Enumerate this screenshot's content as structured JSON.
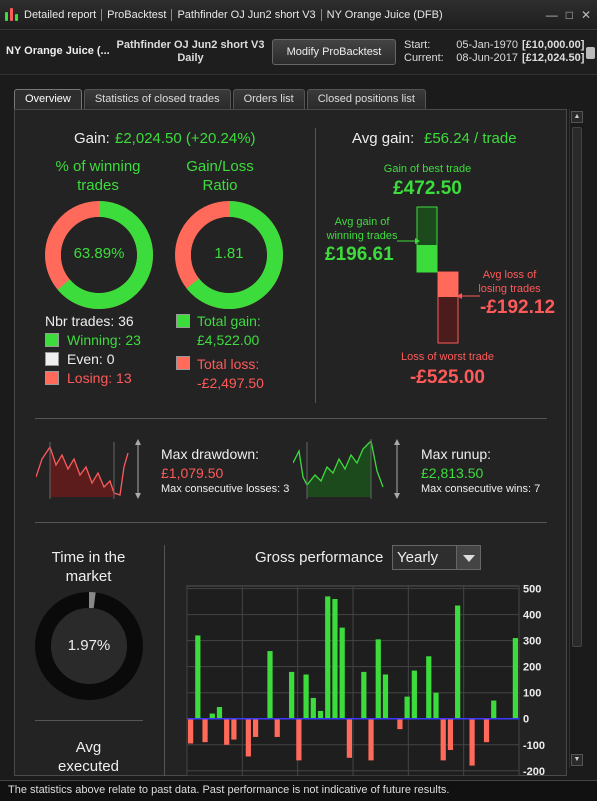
{
  "window": {
    "segments": [
      "Detailed report",
      "ProBacktest",
      "Pathfinder OJ Jun2 short V3",
      "NY Orange Juice (DFB)"
    ],
    "controls": [
      "—",
      "□",
      "✕"
    ]
  },
  "header": {
    "instrument": "NY Orange Juice (...",
    "strategy_name": "Pathfinder OJ Jun2 short V3",
    "timeframe": "Daily",
    "modify_button": "Modify ProBacktest",
    "start_label": "Start:",
    "start_date": "05-Jan-1970",
    "start_amount": "[£10,000.00]",
    "current_label": "Current:",
    "current_date": "08-Jun-2017",
    "current_amount": "[£12,024.50]"
  },
  "tabs": [
    "Overview",
    "Statistics of closed trades",
    "Orders list",
    "Closed positions list"
  ],
  "overview": {
    "gain_label": "Gain:",
    "gain_value": "£2,024.50 (+20.24%)",
    "winning_title_1": "% of winning",
    "winning_title_2": "trades",
    "winning_pct": "63.89%",
    "winning_fraction": 0.6389,
    "gl_title_1": "Gain/Loss",
    "gl_title_2": "Ratio",
    "gl_ratio": "1.81",
    "gl_fraction": 0.644,
    "nbr_trades": "Nbr trades: 36",
    "winning": "Winning: 23",
    "even": "Even: 0",
    "losing": "Losing: 13",
    "total_gain_label": "Total gain:",
    "total_gain": "£4,522.00",
    "total_loss_label": "Total loss:",
    "total_loss": "-£2,497.50",
    "avg_gain_label": "Avg gain:",
    "avg_gain_value": "£56.24 / trade",
    "best_trade_label": "Gain of best trade",
    "best_trade": "£472.50",
    "avg_win_label_1": "Avg gain of",
    "avg_win_label_2": "winning trades",
    "avg_win": "£196.61",
    "avg_loss_label_1": "Avg loss of",
    "avg_loss_label_2": "losing trades",
    "avg_loss": "-£192.12",
    "worst_trade_label": "Loss of worst trade",
    "worst_trade": "-£525.00",
    "max_drawdown_label": "Max drawdown:",
    "max_drawdown": "£1,079.50",
    "max_consec_losses": "Max consecutive losses: 3",
    "max_runup_label": "Max runup:",
    "max_runup": "£2,813.50",
    "max_consec_wins": "Max consecutive wins: 7",
    "time_market_1": "Time in the",
    "time_market_2": "market",
    "time_market_pct": "1.97%",
    "time_market_fraction": 0.0197,
    "avg_executed_1": "Avg",
    "avg_executed_2": "executed",
    "gross_perf_label": "Gross performance",
    "period_select": "Yearly"
  },
  "colors": {
    "green": "#3ddc3d",
    "red": "#ff5a5a",
    "dark_green": "#1c5c1c",
    "dark_red": "#5c1c1c"
  },
  "chart_data": {
    "type": "bar",
    "title": "Gross performance",
    "y_ticks": [
      "500",
      "400",
      "300",
      "200",
      "100",
      "0",
      "-100",
      "-200"
    ],
    "ylim": [
      -220,
      510
    ],
    "grid": true,
    "values": [
      -95,
      320,
      -90,
      20,
      45,
      -100,
      -80,
      0,
      -145,
      -70,
      0,
      260,
      -70,
      0,
      180,
      -160,
      170,
      80,
      30,
      470,
      460,
      350,
      -150,
      0,
      180,
      -160,
      305,
      170,
      0,
      -40,
      85,
      185,
      0,
      240,
      100,
      -160,
      -120,
      435,
      0,
      -180,
      0,
      -90,
      70,
      0,
      0,
      310
    ]
  },
  "footer_text": "The statistics above relate to past data. Past performance is not indicative of future results."
}
